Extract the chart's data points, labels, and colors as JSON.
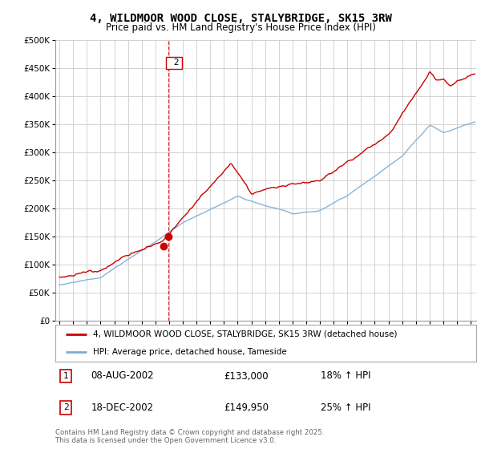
{
  "title_line1": "4, WILDMOOR WOOD CLOSE, STALYBRIDGE, SK15 3RW",
  "title_line2": "Price paid vs. HM Land Registry's House Price Index (HPI)",
  "legend_entry1": "4, WILDMOOR WOOD CLOSE, STALYBRIDGE, SK15 3RW (detached house)",
  "legend_entry2": "HPI: Average price, detached house, Tameside",
  "line1_color": "#cc0000",
  "line2_color": "#7aadd4",
  "annotation1_label": "1",
  "annotation1_date": "08-AUG-2002",
  "annotation1_price": "£133,000",
  "annotation1_hpi": "18% ↑ HPI",
  "annotation2_label": "2",
  "annotation2_date": "18-DEC-2002",
  "annotation2_price": "£149,950",
  "annotation2_hpi": "25% ↑ HPI",
  "footer": "Contains HM Land Registry data © Crown copyright and database right 2025.\nThis data is licensed under the Open Government Licence v3.0.",
  "ylim": [
    0,
    500000
  ],
  "yticks": [
    0,
    50000,
    100000,
    150000,
    200000,
    250000,
    300000,
    350000,
    400000,
    450000,
    500000
  ],
  "background_color": "#ffffff",
  "grid_color": "#cccccc",
  "purchase1_x": 2002.6,
  "purchase1_y": 133000,
  "purchase2_x": 2002.96,
  "purchase2_y": 149950,
  "xlim_min": 1994.7,
  "xlim_max": 2025.4
}
